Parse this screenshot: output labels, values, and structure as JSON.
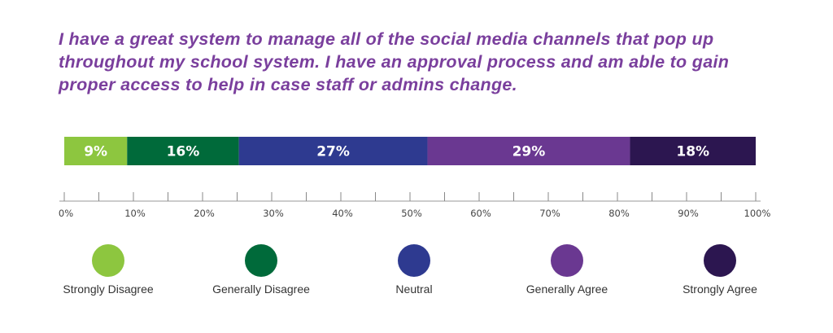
{
  "chart_data": {
    "type": "bar",
    "orientation": "horizontal-stacked-100",
    "title": "I have a great system to manage all of the social media channels that pop up throughout my school system. I have an approval process and am able to gain proper access to help in case staff or admins change.",
    "series": [
      {
        "name": "Strongly Disagree",
        "value": 9,
        "label": "9%",
        "color": "#8dc63f"
      },
      {
        "name": "Generally Disagree",
        "value": 16,
        "label": "16%",
        "color": "#006a3a"
      },
      {
        "name": "Neutral",
        "value": 27,
        "label": "27%",
        "color": "#2e3a90"
      },
      {
        "name": "Generally Agree",
        "value": 29,
        "label": "29%",
        "color": "#6a3891"
      },
      {
        "name": "Strongly Agree",
        "value": 18,
        "label": "18%",
        "color": "#2c1650"
      }
    ],
    "xlim": [
      0,
      100
    ],
    "xticks": [
      "0%",
      "10%",
      "20%",
      "30%",
      "40%",
      "50%",
      "60%",
      "70%",
      "80%",
      "90%",
      "100%"
    ],
    "minor_tick_step": 5,
    "grid": false,
    "legend": "bottom",
    "title_color": "#7a3f9d"
  }
}
